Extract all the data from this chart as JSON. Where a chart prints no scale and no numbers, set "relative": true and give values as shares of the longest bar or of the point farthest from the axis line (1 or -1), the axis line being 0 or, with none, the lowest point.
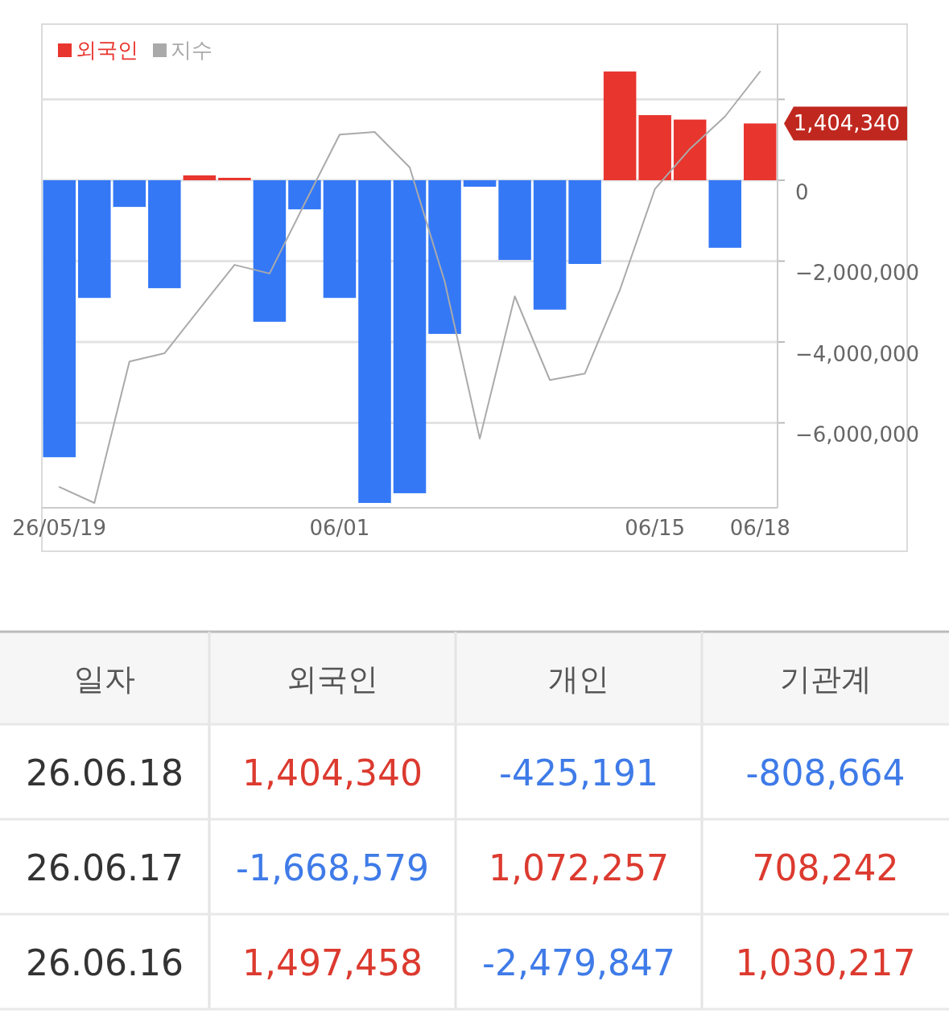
{
  "chart_data": [
    {
      "type": "bar",
      "categories": [
        "26/05/19",
        null,
        null,
        null,
        null,
        null,
        null,
        null,
        "06/01",
        null,
        null,
        null,
        null,
        null,
        null,
        null,
        null,
        "06/15",
        null,
        null,
        "06/18"
      ],
      "ylim": [
        -8100000,
        3860000
      ],
      "yticks": [
        {
          "value": -6000000,
          "label": "−6,000,000"
        },
        {
          "value": -4000000,
          "label": "−4,000,000"
        },
        {
          "value": -2000000,
          "label": "−2,000,000"
        },
        0,
        {
          "value": 2000000,
          "label": null
        }
      ],
      "grid": "y",
      "legend": "top left",
      "annotations": [
        "1,404,340"
      ],
      "series": [
        {
          "name": "외국인",
          "color": "#e8352e",
          "colors": [
            "#3478f6",
            "#3478f6",
            "#3478f6",
            "#3478f6",
            "#e8352e",
            "#e8352e",
            "#3478f6",
            "#3478f6",
            "#3478f6",
            "#3478f6",
            "#3478f6",
            "#3478f6",
            "#3478f6",
            "#3478f6",
            "#3478f6",
            "#3478f6",
            "#e8352e",
            "#e8352e",
            "#e8352e",
            "#3478f6",
            "#e8352e"
          ],
          "values": [
            -6850000,
            -2910000,
            -660000,
            -2670000,
            120000,
            60000,
            -3500000,
            -720000,
            -2910000,
            -7980000,
            -7740000,
            -3800000,
            -160000,
            -1970000,
            -3200000,
            -2070000,
            2690000,
            1610000,
            1500000,
            -1670000,
            1404340
          ]
        }
      ]
    },
    {
      "type": "line",
      "relative": true,
      "legend": "top left",
      "categories": [
        null,
        null,
        null,
        null,
        null,
        null,
        null,
        null,
        null,
        null,
        null,
        null,
        null,
        null,
        null,
        null,
        null,
        null,
        null,
        null,
        null
      ],
      "series": [
        {
          "name": "지수",
          "color": "#aaaaaa",
          "values": [
            0.037,
            0,
            0.328,
            0.347,
            0.45,
            0.552,
            0.532,
            0.694,
            0.854,
            0.86,
            0.778,
            0.513,
            0.149,
            0.479,
            0.285,
            0.3,
            0.494,
            0.728,
            0.821,
            0.896,
            1
          ]
        }
      ]
    },
    {
      "type": "other",
      "ylabel": "일자",
      "categories": [
        "외국인",
        "개인",
        "기관계"
      ],
      "y_categories": [
        "26.06.18",
        "26.06.17",
        "26.06.16"
      ],
      "cell_labels": [
        [
          "1,404,340",
          "-425,191",
          "-808,664"
        ],
        [
          "-1,668,579",
          "1,072,257",
          "708,242"
        ],
        [
          "1,497,458",
          "-2,479,847",
          "1,030,217"
        ]
      ]
    }
  ]
}
